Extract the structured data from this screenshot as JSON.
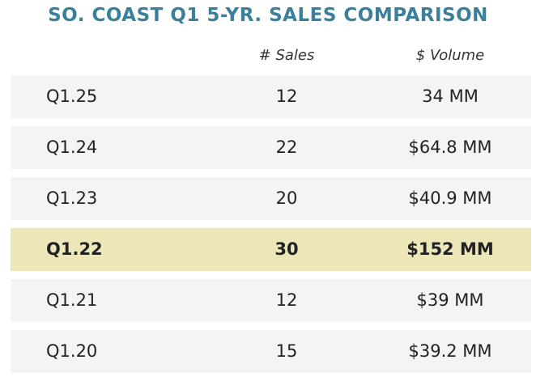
{
  "title": "SO. COAST Q1 5-YR. SALES COMPARISON",
  "columns": [
    "",
    "# Sales",
    "$ Volume"
  ],
  "rows": [
    {
      "quarter": "Q1.25",
      "sales": "12",
      "volume": "34 MM",
      "highlight": false
    },
    {
      "quarter": "Q1.24",
      "sales": "22",
      "volume": "$64.8 MM",
      "highlight": false
    },
    {
      "quarter": "Q1.23",
      "sales": "20",
      "volume": "$40.9 MM",
      "highlight": false
    },
    {
      "quarter": "Q1.22",
      "sales": "30",
      "volume": "$152 MM",
      "highlight": true
    },
    {
      "quarter": "Q1.21",
      "sales": "12",
      "volume": "$39 MM",
      "highlight": false
    },
    {
      "quarter": "Q1.20",
      "sales": "15",
      "volume": "$39.2 MM",
      "highlight": false
    }
  ],
  "colors": {
    "title": "#3a7f9b",
    "row_background": "#f5f4f2",
    "highlight_background": "#ede6b8"
  }
}
